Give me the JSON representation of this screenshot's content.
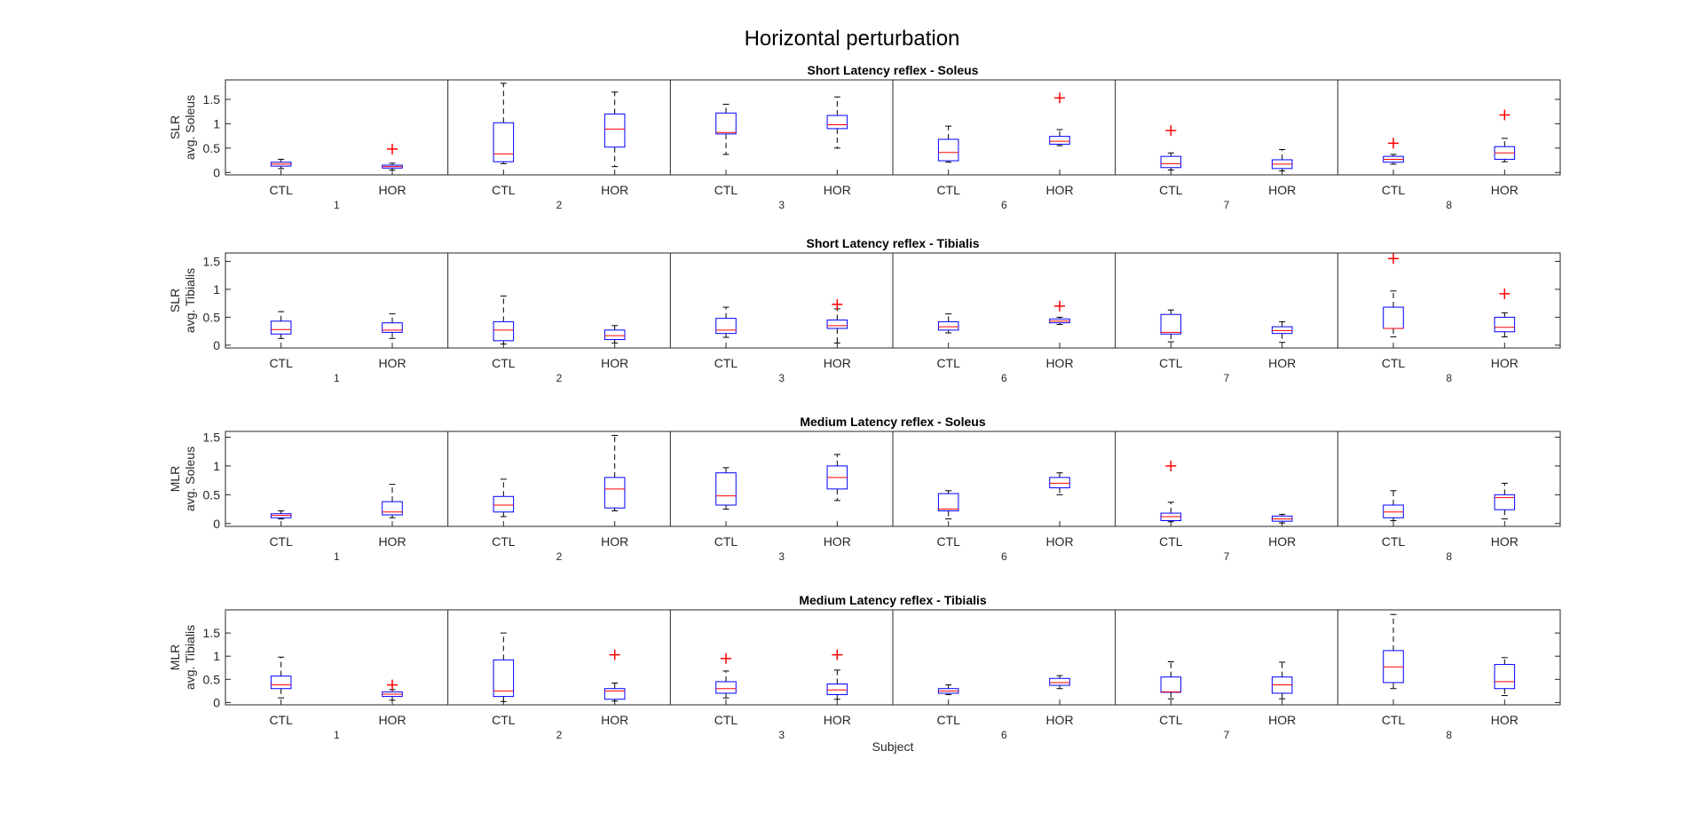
{
  "figure": {
    "title": "Horizontal perturbation",
    "xlabel": "Subject"
  },
  "colors": {
    "box": "#0000ff",
    "median": "#ff0000",
    "whisker": "#000000",
    "outlier": "#ff0000",
    "axis": "#262626"
  },
  "chart_data": [
    {
      "type": "box",
      "title": "Short Latency reflex - Soleus",
      "ylabel": [
        "SLR",
        "avg. Soleus"
      ],
      "ylim": [
        -0.05,
        1.9
      ],
      "yticks": [
        0,
        0.5,
        1,
        1.5
      ],
      "group_labels": [
        "1",
        "2",
        "3",
        "6",
        "7",
        "8"
      ],
      "condition_labels": [
        "CTL",
        "HOR"
      ],
      "boxes": [
        {
          "group": "1",
          "cond": "CTL",
          "wl": 0.08,
          "q1": 0.13,
          "med": 0.17,
          "q3": 0.21,
          "wh": 0.27,
          "outliers": []
        },
        {
          "group": "1",
          "cond": "HOR",
          "wl": 0.05,
          "q1": 0.09,
          "med": 0.12,
          "q3": 0.15,
          "wh": 0.19,
          "outliers": [
            0.48
          ]
        },
        {
          "group": "2",
          "cond": "CTL",
          "wl": 0.18,
          "q1": 0.22,
          "med": 0.38,
          "q3": 1.02,
          "wh": 1.83,
          "outliers": []
        },
        {
          "group": "2",
          "cond": "HOR",
          "wl": 0.12,
          "q1": 0.52,
          "med": 0.89,
          "q3": 1.2,
          "wh": 1.65,
          "outliers": []
        },
        {
          "group": "3",
          "cond": "CTL",
          "wl": 0.37,
          "q1": 0.79,
          "med": 0.82,
          "q3": 1.22,
          "wh": 1.4,
          "outliers": []
        },
        {
          "group": "3",
          "cond": "HOR",
          "wl": 0.5,
          "q1": 0.9,
          "med": 0.98,
          "q3": 1.17,
          "wh": 1.55,
          "outliers": []
        },
        {
          "group": "6",
          "cond": "CTL",
          "wl": 0.21,
          "q1": 0.24,
          "med": 0.41,
          "q3": 0.68,
          "wh": 0.95,
          "outliers": []
        },
        {
          "group": "6",
          "cond": "HOR",
          "wl": 0.55,
          "q1": 0.58,
          "med": 0.64,
          "q3": 0.74,
          "wh": 0.88,
          "outliers": [
            1.53
          ]
        },
        {
          "group": "7",
          "cond": "CTL",
          "wl": 0.05,
          "q1": 0.1,
          "med": 0.18,
          "q3": 0.33,
          "wh": 0.4,
          "outliers": [
            0.86
          ]
        },
        {
          "group": "7",
          "cond": "HOR",
          "wl": 0.03,
          "q1": 0.08,
          "med": 0.17,
          "q3": 0.26,
          "wh": 0.47,
          "outliers": []
        },
        {
          "group": "8",
          "cond": "CTL",
          "wl": 0.17,
          "q1": 0.21,
          "med": 0.27,
          "q3": 0.33,
          "wh": 0.37,
          "outliers": [
            0.6
          ]
        },
        {
          "group": "8",
          "cond": "HOR",
          "wl": 0.22,
          "q1": 0.27,
          "med": 0.4,
          "q3": 0.53,
          "wh": 0.7,
          "outliers": [
            1.18
          ]
        }
      ]
    },
    {
      "type": "box",
      "title": "Short Latency reflex - Tibialis",
      "ylabel": [
        "SLR",
        "avg. Tibialis"
      ],
      "ylim": [
        -0.05,
        1.65
      ],
      "yticks": [
        0,
        0.5,
        1,
        1.5
      ],
      "group_labels": [
        "1",
        "2",
        "3",
        "6",
        "7",
        "8"
      ],
      "condition_labels": [
        "CTL",
        "HOR"
      ],
      "boxes": [
        {
          "group": "1",
          "cond": "CTL",
          "wl": 0.12,
          "q1": 0.2,
          "med": 0.28,
          "q3": 0.43,
          "wh": 0.6,
          "outliers": []
        },
        {
          "group": "1",
          "cond": "HOR",
          "wl": 0.12,
          "q1": 0.23,
          "med": 0.27,
          "q3": 0.4,
          "wh": 0.56,
          "outliers": []
        },
        {
          "group": "2",
          "cond": "CTL",
          "wl": 0.02,
          "q1": 0.08,
          "med": 0.27,
          "q3": 0.42,
          "wh": 0.88,
          "outliers": []
        },
        {
          "group": "2",
          "cond": "HOR",
          "wl": 0.04,
          "q1": 0.1,
          "med": 0.17,
          "q3": 0.27,
          "wh": 0.35,
          "outliers": []
        },
        {
          "group": "3",
          "cond": "CTL",
          "wl": 0.14,
          "q1": 0.21,
          "med": 0.27,
          "q3": 0.48,
          "wh": 0.68,
          "outliers": []
        },
        {
          "group": "3",
          "cond": "HOR",
          "wl": 0.04,
          "q1": 0.3,
          "med": 0.35,
          "q3": 0.45,
          "wh": 0.65,
          "outliers": [
            0.73
          ]
        },
        {
          "group": "6",
          "cond": "CTL",
          "wl": 0.22,
          "q1": 0.27,
          "med": 0.33,
          "q3": 0.42,
          "wh": 0.56,
          "outliers": []
        },
        {
          "group": "6",
          "cond": "HOR",
          "wl": 0.37,
          "q1": 0.4,
          "med": 0.43,
          "q3": 0.47,
          "wh": 0.5,
          "outliers": [
            0.7
          ]
        },
        {
          "group": "7",
          "cond": "CTL",
          "wl": 0.06,
          "q1": 0.2,
          "med": 0.23,
          "q3": 0.55,
          "wh": 0.63,
          "outliers": []
        },
        {
          "group": "7",
          "cond": "HOR",
          "wl": 0.05,
          "q1": 0.21,
          "med": 0.26,
          "q3": 0.33,
          "wh": 0.42,
          "outliers": []
        },
        {
          "group": "8",
          "cond": "CTL",
          "wl": 0.15,
          "q1": 0.3,
          "med": 0.3,
          "q3": 0.68,
          "wh": 0.97,
          "outliers": [
            1.55
          ]
        },
        {
          "group": "8",
          "cond": "HOR",
          "wl": 0.15,
          "q1": 0.24,
          "med": 0.32,
          "q3": 0.5,
          "wh": 0.58,
          "outliers": [
            0.92
          ]
        }
      ]
    },
    {
      "type": "box",
      "title": "Medium Latency reflex - Soleus",
      "ylabel": [
        "MLR",
        "avg. Soleus"
      ],
      "ylim": [
        -0.05,
        1.6
      ],
      "yticks": [
        0,
        0.5,
        1,
        1.5
      ],
      "group_labels": [
        "1",
        "2",
        "3",
        "6",
        "7",
        "8"
      ],
      "condition_labels": [
        "CTL",
        "HOR"
      ],
      "boxes": [
        {
          "group": "1",
          "cond": "CTL",
          "wl": 0.08,
          "q1": 0.1,
          "med": 0.14,
          "q3": 0.17,
          "wh": 0.22,
          "outliers": []
        },
        {
          "group": "1",
          "cond": "HOR",
          "wl": 0.1,
          "q1": 0.15,
          "med": 0.2,
          "q3": 0.38,
          "wh": 0.68,
          "outliers": []
        },
        {
          "group": "2",
          "cond": "CTL",
          "wl": 0.12,
          "q1": 0.2,
          "med": 0.32,
          "q3": 0.47,
          "wh": 0.77,
          "outliers": []
        },
        {
          "group": "2",
          "cond": "HOR",
          "wl": 0.22,
          "q1": 0.27,
          "med": 0.6,
          "q3": 0.8,
          "wh": 1.53,
          "outliers": []
        },
        {
          "group": "3",
          "cond": "CTL",
          "wl": 0.25,
          "q1": 0.32,
          "med": 0.48,
          "q3": 0.88,
          "wh": 0.97,
          "outliers": []
        },
        {
          "group": "3",
          "cond": "HOR",
          "wl": 0.4,
          "q1": 0.6,
          "med": 0.8,
          "q3": 1.0,
          "wh": 1.2,
          "outliers": []
        },
        {
          "group": "6",
          "cond": "CTL",
          "wl": 0.08,
          "q1": 0.22,
          "med": 0.25,
          "q3": 0.52,
          "wh": 0.57,
          "outliers": []
        },
        {
          "group": "6",
          "cond": "HOR",
          "wl": 0.5,
          "q1": 0.62,
          "med": 0.7,
          "q3": 0.8,
          "wh": 0.88,
          "outliers": []
        },
        {
          "group": "7",
          "cond": "CTL",
          "wl": 0.03,
          "q1": 0.05,
          "med": 0.12,
          "q3": 0.18,
          "wh": 0.37,
          "outliers": [
            1.0
          ]
        },
        {
          "group": "7",
          "cond": "HOR",
          "wl": 0.01,
          "q1": 0.04,
          "med": 0.08,
          "q3": 0.13,
          "wh": 0.16,
          "outliers": []
        },
        {
          "group": "8",
          "cond": "CTL",
          "wl": 0.05,
          "q1": 0.1,
          "med": 0.2,
          "q3": 0.32,
          "wh": 0.57,
          "outliers": []
        },
        {
          "group": "8",
          "cond": "HOR",
          "wl": 0.08,
          "q1": 0.24,
          "med": 0.45,
          "q3": 0.5,
          "wh": 0.7,
          "outliers": []
        }
      ]
    },
    {
      "type": "box",
      "title": "Medium Latency reflex - Tibialis",
      "ylabel": [
        "MLR",
        "avg. Tibialis"
      ],
      "ylim": [
        -0.05,
        2.0
      ],
      "yticks": [
        0,
        0.5,
        1,
        1.5
      ],
      "group_labels": [
        "1",
        "2",
        "3",
        "6",
        "7",
        "8"
      ],
      "condition_labels": [
        "CTL",
        "HOR"
      ],
      "boxes": [
        {
          "group": "1",
          "cond": "CTL",
          "wl": 0.1,
          "q1": 0.3,
          "med": 0.38,
          "q3": 0.57,
          "wh": 0.98,
          "outliers": []
        },
        {
          "group": "1",
          "cond": "HOR",
          "wl": 0.05,
          "q1": 0.13,
          "med": 0.18,
          "q3": 0.23,
          "wh": 0.28,
          "outliers": [
            0.38
          ]
        },
        {
          "group": "2",
          "cond": "CTL",
          "wl": 0.02,
          "q1": 0.13,
          "med": 0.25,
          "q3": 0.92,
          "wh": 1.5,
          "outliers": []
        },
        {
          "group": "2",
          "cond": "HOR",
          "wl": 0.03,
          "q1": 0.07,
          "med": 0.25,
          "q3": 0.3,
          "wh": 0.42,
          "outliers": [
            1.03
          ]
        },
        {
          "group": "3",
          "cond": "CTL",
          "wl": 0.1,
          "q1": 0.2,
          "med": 0.3,
          "q3": 0.45,
          "wh": 0.68,
          "outliers": [
            0.95
          ]
        },
        {
          "group": "3",
          "cond": "HOR",
          "wl": 0.07,
          "q1": 0.17,
          "med": 0.27,
          "q3": 0.4,
          "wh": 0.7,
          "outliers": [
            1.03
          ]
        },
        {
          "group": "6",
          "cond": "CTL",
          "wl": 0.17,
          "q1": 0.2,
          "med": 0.25,
          "q3": 0.3,
          "wh": 0.38,
          "outliers": []
        },
        {
          "group": "6",
          "cond": "HOR",
          "wl": 0.3,
          "q1": 0.37,
          "med": 0.43,
          "q3": 0.52,
          "wh": 0.58,
          "outliers": []
        },
        {
          "group": "7",
          "cond": "CTL",
          "wl": 0.08,
          "q1": 0.22,
          "med": 0.23,
          "q3": 0.55,
          "wh": 0.88,
          "outliers": []
        },
        {
          "group": "7",
          "cond": "HOR",
          "wl": 0.08,
          "q1": 0.2,
          "med": 0.38,
          "q3": 0.55,
          "wh": 0.87,
          "outliers": []
        },
        {
          "group": "8",
          "cond": "CTL",
          "wl": 0.3,
          "q1": 0.43,
          "med": 0.77,
          "q3": 1.12,
          "wh": 1.9,
          "outliers": []
        },
        {
          "group": "8",
          "cond": "HOR",
          "wl": 0.15,
          "q1": 0.3,
          "med": 0.45,
          "q3": 0.82,
          "wh": 0.97,
          "outliers": []
        }
      ]
    }
  ]
}
